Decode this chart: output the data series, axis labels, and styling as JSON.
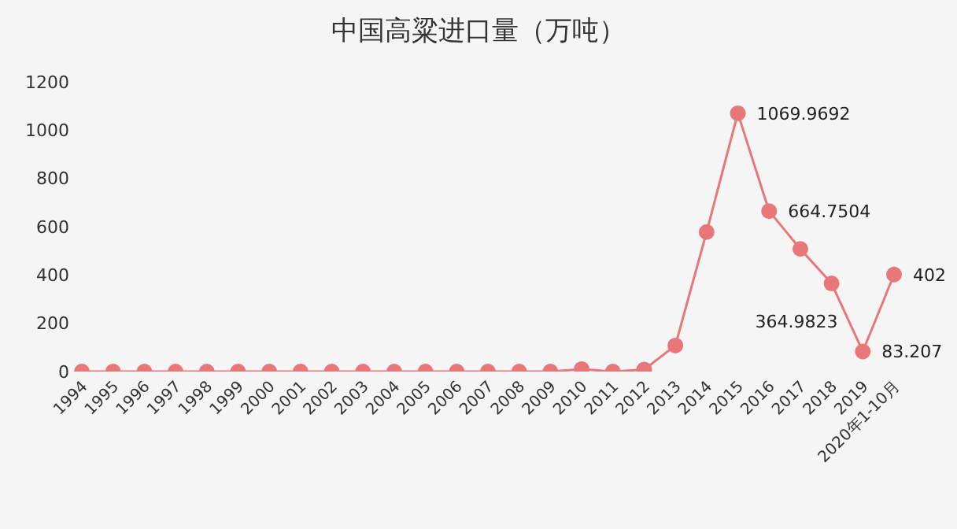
{
  "chart_data": {
    "type": "line",
    "title": "中国高粱进口量（万吨）",
    "categories": [
      "1994",
      "1995",
      "1996",
      "1997",
      "1998",
      "1999",
      "2000",
      "2001",
      "2002",
      "2003",
      "2004",
      "2005",
      "2006",
      "2007",
      "2008",
      "2009",
      "2010",
      "2011",
      "2012",
      "2013",
      "2014",
      "2015",
      "2016",
      "2017",
      "2018",
      "2019",
      "2020年1-10月"
    ],
    "series": [
      {
        "color": "#e8777a",
        "values": [
          0,
          0,
          0,
          0,
          0,
          0,
          0,
          0,
          0,
          0,
          0,
          0,
          0,
          0,
          0,
          0,
          10,
          0,
          8,
          108,
          578,
          1069.9692,
          664.7504,
          508,
          364.9823,
          83.207,
          402
        ],
        "value_labels": [
          null,
          null,
          null,
          null,
          null,
          null,
          null,
          null,
          null,
          null,
          null,
          null,
          null,
          null,
          null,
          null,
          null,
          null,
          null,
          null,
          null,
          "1069.9692",
          "664.7504",
          null,
          "364.9823",
          "83.207",
          "402"
        ]
      }
    ],
    "ylim": [
      0,
      1200
    ],
    "yticks": [
      0,
      200,
      400,
      600,
      800,
      1000,
      1200
    ],
    "grid": false,
    "legend": false,
    "marker": "circle",
    "line_style": "solid"
  }
}
